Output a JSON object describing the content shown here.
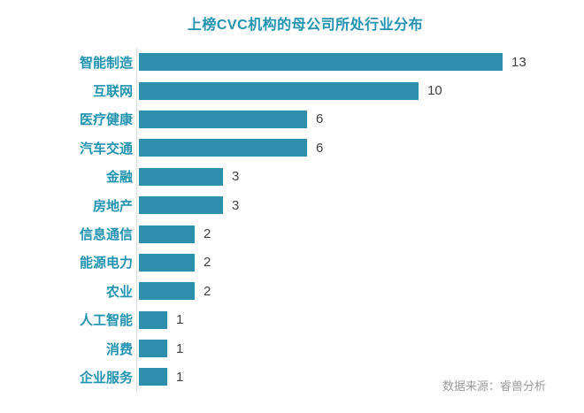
{
  "title": "上榜CVC机构的母公司所处行业分布",
  "source": "数据来源：睿兽分析",
  "colors": {
    "bar": "#2E8FAC",
    "teal_text": "#2193B0",
    "value_text": "#3F3F3F",
    "source_text": "#9B9B9B",
    "axis_line": "#DCDCDC",
    "background": "#FFFFFF"
  },
  "chart_data": {
    "type": "bar",
    "orientation": "horizontal",
    "title": "上榜CVC机构的母公司所处行业分布",
    "categories": [
      "智能制造",
      "互联网",
      "医疗健康",
      "汽车交通",
      "金融",
      "房地产",
      "信息通信",
      "能源电力",
      "农业",
      "人工智能",
      "消费",
      "企业服务"
    ],
    "values": [
      13,
      10,
      6,
      6,
      3,
      3,
      2,
      2,
      2,
      1,
      1,
      1
    ],
    "xlabel": "",
    "ylabel": "",
    "xlim": [
      0,
      13
    ],
    "grid": false,
    "data_labels": true,
    "legend": false,
    "source": "数据来源：睿兽分析"
  }
}
